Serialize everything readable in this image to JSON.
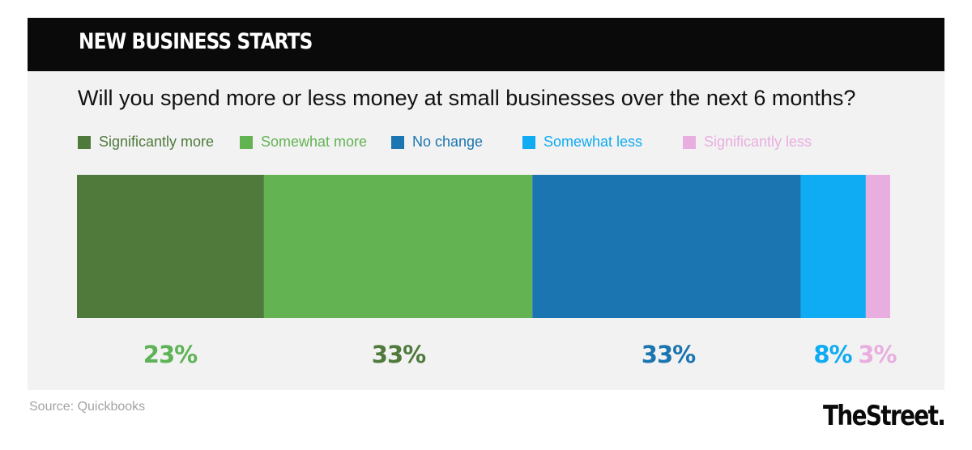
{
  "header": {
    "title": "NEW BUSINESS STARTS"
  },
  "question": "Will you spend more or less money at small businesses over the next 6 months?",
  "source": "Source: Quickbooks",
  "logo_text": "TheStreet.",
  "chart_data": {
    "type": "bar",
    "stacked": "100%",
    "orientation": "horizontal",
    "legend_placement": "top",
    "grid": false,
    "title": "",
    "series": [
      {
        "name": "Significantly more",
        "value": 23,
        "label": "23%",
        "color": "#4f7a3c",
        "label_color": "#5db356"
      },
      {
        "name": "Somewhat more",
        "value": 33,
        "label": "33%",
        "color": "#64b353",
        "label_color": "#4f7a3c"
      },
      {
        "name": "No change",
        "value": 33,
        "label": "33%",
        "color": "#1b75b0",
        "label_color": "#1b75b0"
      },
      {
        "name": "Somewhat less",
        "value": 8,
        "label": "8%",
        "color": "#0fabf3",
        "label_color": "#0fabf3"
      },
      {
        "name": "Significantly less",
        "value": 3,
        "label": "3%",
        "color": "#e8aee0",
        "label_color": "#e8aee0"
      }
    ]
  }
}
